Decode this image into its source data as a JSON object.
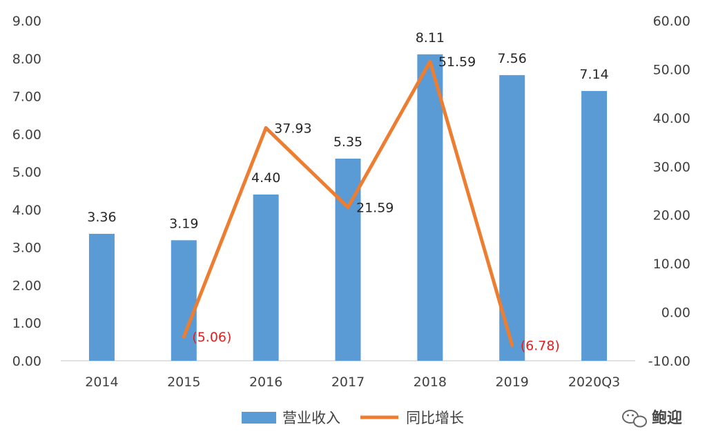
{
  "chart_data": {
    "type": "bar",
    "categories": [
      "2014",
      "2015",
      "2016",
      "2017",
      "2018",
      "2019",
      "2020Q3"
    ],
    "series": [
      {
        "name": "营业收入",
        "kind": "bar",
        "axis": "left",
        "color": "#5b9bd5",
        "values": [
          3.36,
          3.19,
          4.4,
          5.35,
          8.11,
          7.56,
          7.14
        ],
        "labels": [
          "3.36",
          "3.19",
          "4.40",
          "5.35",
          "8.11",
          "7.56",
          "7.14"
        ]
      },
      {
        "name": "同比增长",
        "kind": "line",
        "axis": "right",
        "color": "#ed7d31",
        "values": [
          null,
          -5.06,
          37.93,
          21.59,
          51.59,
          -6.78,
          null
        ],
        "labels": [
          "",
          "(5.06)",
          "37.93",
          "21.59",
          "51.59",
          "(6.78)",
          ""
        ]
      }
    ],
    "y_left": {
      "ylim": [
        0,
        9
      ],
      "ticks": [
        0,
        1,
        2,
        3,
        4,
        5,
        6,
        7,
        8,
        9
      ],
      "tick_labels": [
        "0.00",
        "1.00",
        "2.00",
        "3.00",
        "4.00",
        "5.00",
        "6.00",
        "7.00",
        "8.00",
        "9.00"
      ]
    },
    "y_right": {
      "ylim": [
        -10,
        60
      ],
      "ticks": [
        -10,
        0,
        10,
        20,
        30,
        40,
        50,
        60
      ],
      "tick_labels": [
        "-10.00",
        "0.00",
        "10.00",
        "20.00",
        "30.00",
        "40.00",
        "50.00",
        "60.00"
      ]
    },
    "grid": false,
    "legend_position": "bottom",
    "negative_label_color": "#e02020"
  },
  "watermark": {
    "text": "鲍迎",
    "icon": "wechat-icon"
  }
}
